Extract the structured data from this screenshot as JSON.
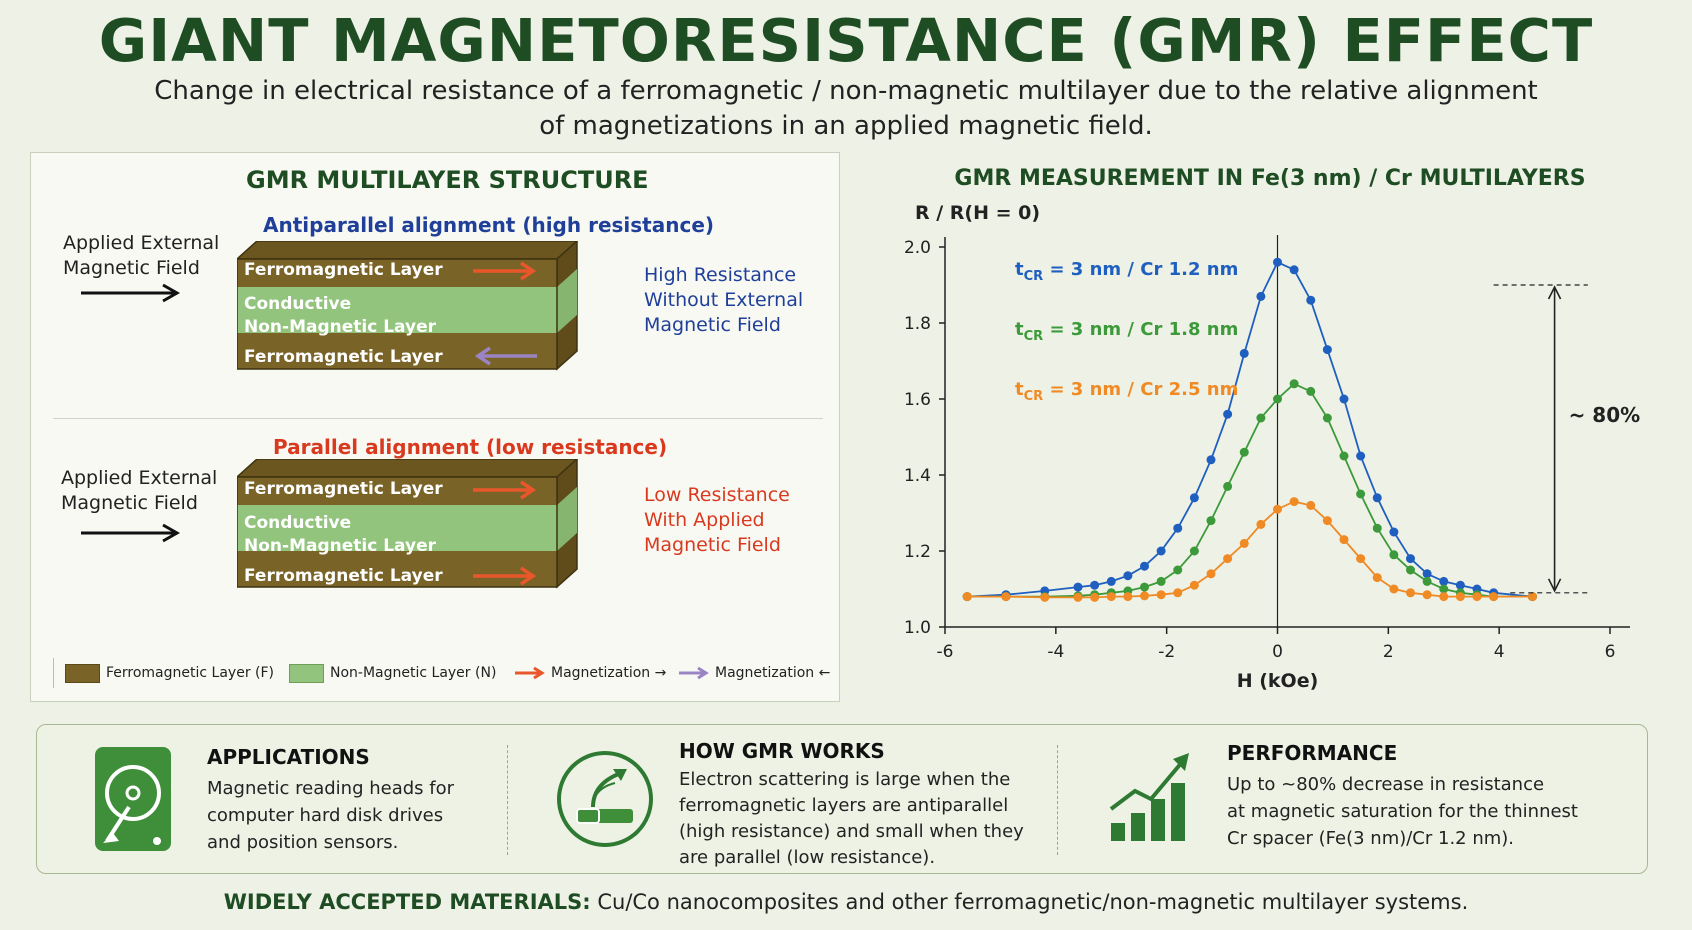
{
  "title": "GIANT MAGNETORESISTANCE (GMR) EFFECT",
  "subtitle_line1": "Change in electrical resistance of a ferromagnetic / non-magnetic multilayer due to the relative alignment",
  "subtitle_line2": "of magnetizations in an applied magnetic field.",
  "structure": {
    "title": "GMR MULTILAYER STRUCTURE",
    "antiparallel": {
      "title": "Antiparallel alignment (high resistance)",
      "field_label_1": "Applied External",
      "field_label_2": "Magnetic Field",
      "top_layer": "Ferromagnetic Layer",
      "middle_layer_1": "Conductive",
      "middle_layer_2": "Non-Magnetic Layer",
      "bottom_layer": "Ferromagnetic Layer",
      "state_1": "High Resistance",
      "state_2": "Without External",
      "state_3": "Magnetic Field"
    },
    "parallel": {
      "title": "Parallel alignment (low resistance)",
      "field_label_1": "Applied External",
      "field_label_2": "Magnetic Field",
      "top_layer": "Ferromagnetic Layer",
      "middle_layer_1": "Conductive",
      "middle_layer_2": "Non-Magnetic Layer",
      "bottom_layer": "Ferromagnetic Layer",
      "state_1": "Low Resistance",
      "state_2": "With Applied",
      "state_3": "Magnetic Field"
    },
    "legend": {
      "ferro": "Ferromagnetic Layer (F)",
      "nonmag": "Non-Magnetic Layer (N)",
      "mag_right": "Magnetization →",
      "mag_left": "Magnetization ←"
    }
  },
  "colors": {
    "title_green": "#1f4d23",
    "ferro_brown": "#7a6326",
    "nonmag_green": "#93c47d",
    "arrow_orange": "#e8572c",
    "arrow_purple": "#9a84c4",
    "blue_series": "#1f5fbf",
    "green_series": "#3d9a3a",
    "orange_series": "#f08a24",
    "antiparallel_text": "#1f3f99",
    "parallel_text": "#d93a1f"
  },
  "chart_title": "GMR MEASUREMENT IN Fe(3 nm) / Cr MULTILAYERS",
  "chart_data": {
    "type": "line",
    "ylabel": "R / R(H = 0)",
    "xlabel": "H (kOe)",
    "xlim": [
      -6,
      6
    ],
    "ylim": [
      1.0,
      2.0
    ],
    "xticks": [
      "-6",
      "-4",
      "-2",
      "0",
      "2",
      "4",
      "6"
    ],
    "yticks": [
      "1.0",
      "1.2",
      "1.4",
      "1.6",
      "1.8",
      "2.0"
    ],
    "series": [
      {
        "name": "t_CR = 3 nm / Cr 1.2 nm",
        "label_main": "t",
        "label_sub": "CR",
        "label_rest": " = 3 nm / Cr 1.2 nm",
        "color": "#1f5fbf",
        "x": [
          -5.6,
          -4.9,
          -4.2,
          -3.6,
          -3.3,
          -3.0,
          -2.7,
          -2.4,
          -2.1,
          -1.8,
          -1.5,
          -1.2,
          -0.9,
          -0.6,
          -0.3,
          0,
          0.3,
          0.6,
          0.9,
          1.2,
          1.5,
          1.8,
          2.1,
          2.4,
          2.7,
          3.0,
          3.3,
          3.6,
          3.9,
          4.6
        ],
        "y": [
          1.08,
          1.085,
          1.095,
          1.105,
          1.11,
          1.12,
          1.135,
          1.16,
          1.2,
          1.26,
          1.34,
          1.44,
          1.56,
          1.72,
          1.87,
          1.96,
          1.94,
          1.86,
          1.73,
          1.6,
          1.45,
          1.34,
          1.25,
          1.18,
          1.14,
          1.12,
          1.11,
          1.1,
          1.09,
          1.08
        ]
      },
      {
        "name": "t_CR = 3 nm / Cr 1.8 nm",
        "label_main": "t",
        "label_sub": "CR",
        "label_rest": " = 3 nm / Cr 1.8 nm",
        "color": "#3d9a3a",
        "x": [
          -5.6,
          -4.9,
          -4.2,
          -3.6,
          -3.3,
          -3.0,
          -2.7,
          -2.4,
          -2.1,
          -1.8,
          -1.5,
          -1.2,
          -0.9,
          -0.6,
          -0.3,
          0,
          0.3,
          0.6,
          0.9,
          1.2,
          1.5,
          1.8,
          2.1,
          2.4,
          2.7,
          3.0,
          3.3,
          3.6,
          3.9,
          4.6
        ],
        "y": [
          1.08,
          1.08,
          1.08,
          1.082,
          1.085,
          1.09,
          1.095,
          1.105,
          1.12,
          1.15,
          1.2,
          1.28,
          1.37,
          1.46,
          1.55,
          1.6,
          1.64,
          1.62,
          1.55,
          1.45,
          1.35,
          1.26,
          1.19,
          1.15,
          1.12,
          1.1,
          1.09,
          1.085,
          1.08,
          1.08
        ]
      },
      {
        "name": "t_CR = 3 nm / Cr 2.5 nm",
        "label_main": "t",
        "label_sub": "CR",
        "label_rest": " = 3 nm / Cr 2.5 nm",
        "color": "#f08a24",
        "x": [
          -5.6,
          -4.9,
          -4.2,
          -3.6,
          -3.3,
          -3.0,
          -2.7,
          -2.4,
          -2.1,
          -1.8,
          -1.5,
          -1.2,
          -0.9,
          -0.6,
          -0.3,
          0,
          0.3,
          0.6,
          0.9,
          1.2,
          1.5,
          1.8,
          2.1,
          2.4,
          2.7,
          3.0,
          3.3,
          3.6,
          3.9,
          4.6
        ],
        "y": [
          1.08,
          1.08,
          1.078,
          1.078,
          1.078,
          1.08,
          1.08,
          1.082,
          1.085,
          1.09,
          1.11,
          1.14,
          1.18,
          1.22,
          1.27,
          1.31,
          1.33,
          1.32,
          1.28,
          1.23,
          1.18,
          1.13,
          1.1,
          1.09,
          1.085,
          1.08,
          1.08,
          1.08,
          1.08,
          1.08
        ]
      }
    ],
    "annotation": "~ 80%",
    "grid": false
  },
  "info": {
    "applications_title": "APPLICATIONS",
    "applications_lines": [
      "Magnetic reading heads for",
      "computer hard disk drives",
      "and position sensors."
    ],
    "how_title": "HOW GMR WORKS",
    "how_lines": [
      "Electron scattering is large when the",
      "ferromagnetic layers are antiparallel",
      "(high resistance) and small when they",
      "are parallel (low resistance)."
    ],
    "performance_title": "PERFORMANCE",
    "performance_lines": [
      "Up to ~80% decrease in resistance",
      "at magnetic saturation for the thinnest",
      "Cr spacer (Fe(3 nm)/Cr 1.2 nm)."
    ]
  },
  "footer": {
    "bold": "WIDELY ACCEPTED MATERIALS:",
    "text": " Cu/Co nanocomposites and other ferromagnetic/non-magnetic multilayer systems."
  }
}
